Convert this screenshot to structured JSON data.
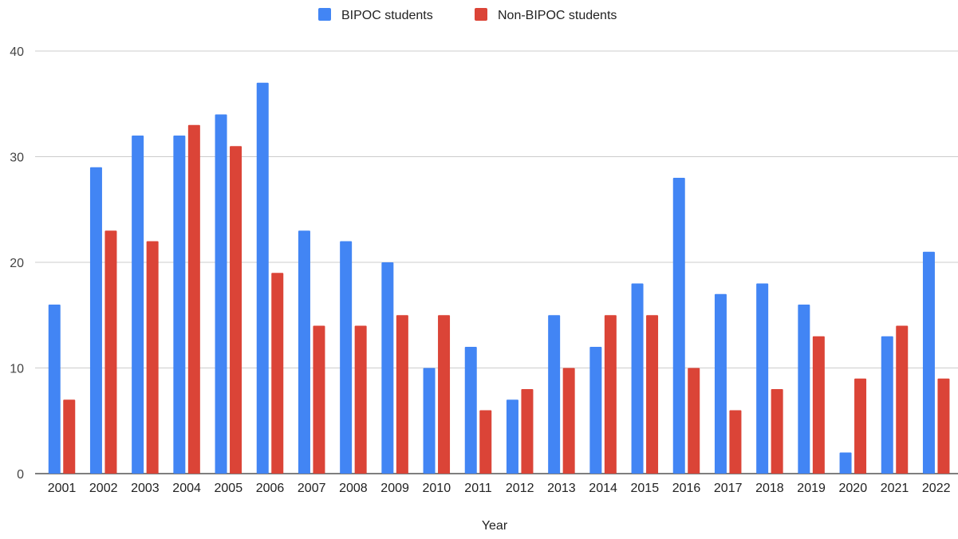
{
  "chart_data": {
    "type": "bar",
    "title": "",
    "xlabel": "Year",
    "ylabel": "",
    "ylim": [
      0,
      40
    ],
    "yticks": [
      0,
      10,
      20,
      30,
      40
    ],
    "grid": true,
    "legend_position": "top",
    "categories": [
      "2001",
      "2002",
      "2003",
      "2004",
      "2005",
      "2006",
      "2007",
      "2008",
      "2009",
      "2010",
      "2011",
      "2012",
      "2013",
      "2014",
      "2015",
      "2016",
      "2017",
      "2018",
      "2019",
      "2020",
      "2021",
      "2022"
    ],
    "series": [
      {
        "name": "BIPOC students",
        "color": "#4285f4",
        "values": [
          16,
          29,
          32,
          32,
          34,
          37,
          23,
          22,
          20,
          10,
          12,
          7,
          15,
          12,
          18,
          28,
          17,
          18,
          16,
          2,
          13,
          21
        ]
      },
      {
        "name": "Non-BIPOC students",
        "color": "#db4437",
        "values": [
          7,
          23,
          22,
          33,
          31,
          19,
          14,
          14,
          15,
          15,
          6,
          8,
          10,
          15,
          15,
          10,
          6,
          8,
          13,
          9,
          14,
          9
        ]
      }
    ]
  }
}
